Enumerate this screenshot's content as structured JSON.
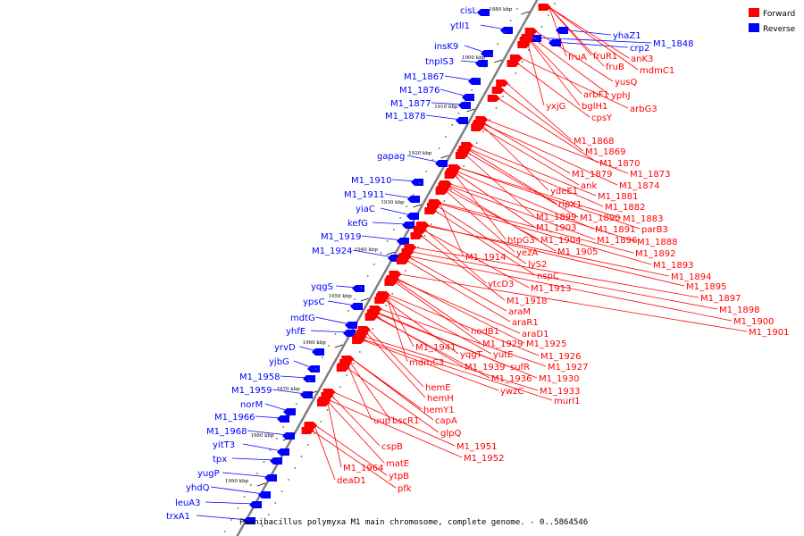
{
  "caption": "Paenibacillus polymyxa M1 main chromosome, complete genome. - 0..5864546",
  "legend": {
    "forward_label": "Forward",
    "reverse_label": "Reverse",
    "forward_color": "#ff0000",
    "reverse_color": "#0000ff"
  },
  "axis_color": "#808080",
  "ticks": [
    "1880 kbp",
    "1900 kbp",
    "1910 kbp",
    "1920 kbp",
    "1930 kbp",
    "1940 kbp",
    "1950 kbp",
    "1960 kbp",
    "1970 kbp",
    "1980 kbp",
    "1990 kbp"
  ],
  "reverse_genes": [
    "cisL",
    "ytlI1",
    "insK9",
    "tnpIS3",
    "M1_1867",
    "M1_1876",
    "M1_1877",
    "M1_1878",
    "gapag",
    "M1_1910",
    "M1_1911",
    "yiaC",
    "kefG",
    "M1_1919",
    "M1_1924",
    "yqgS",
    "ypsC",
    "mdtG",
    "yhfE",
    "yrvD",
    "yjbG",
    "M1_1958",
    "M1_1959",
    "norM",
    "M1_1966",
    "M1_1968",
    "yitT3",
    "tpx",
    "yugP",
    "yhdQ",
    "leuA3",
    "trxA1",
    "yhaZ1",
    "crp2",
    "M1_1848"
  ],
  "forward_genes": [
    "fruA",
    "fruR1",
    "anK3",
    "fruB",
    "mdmC1",
    "yusQ",
    "arbF1",
    "yphJ",
    "yxjG",
    "bglH1",
    "arbG3",
    "cpsY",
    "M1_1868",
    "M1_1869",
    "M1_1870",
    "M1_1879",
    "M1_1873",
    "ank",
    "M1_1874",
    "ydeE1",
    "M1_1881",
    "ripX1",
    "M1_1882",
    "M1_1899",
    "M1_1890",
    "M1_1883",
    "M1_1903",
    "M1_1891",
    "parB3",
    "htpG3",
    "M1_1904",
    "M1_1896",
    "M1_1888",
    "yezA",
    "M1_1905",
    "M1_1892",
    "M1_1914",
    "lyS2",
    "M1_1893",
    "nspC",
    "M1_1894",
    "ytcD3",
    "M1_1913",
    "M1_1895",
    "M1_1918",
    "M1_1897",
    "araM",
    "M1_1898",
    "araR1",
    "M1_1900",
    "nodB1",
    "araD1",
    "M1_1901",
    "M1_1929",
    "M1_1925",
    "M1_1941",
    "yqgT",
    "yutE",
    "M1_1926",
    "mdmC3",
    "M1_1939",
    "sufR",
    "M1_1927",
    "M1_1936",
    "M1_1930",
    "ywzC",
    "M1_1933",
    "hemE",
    "murI1",
    "hemH",
    "hemY1",
    "uup",
    "bscR1",
    "capA",
    "glpQ",
    "cspB",
    "M1_1951",
    "M1_1952",
    "matE",
    "M1_1964",
    "ytpB",
    "deaD1",
    "pfk"
  ]
}
